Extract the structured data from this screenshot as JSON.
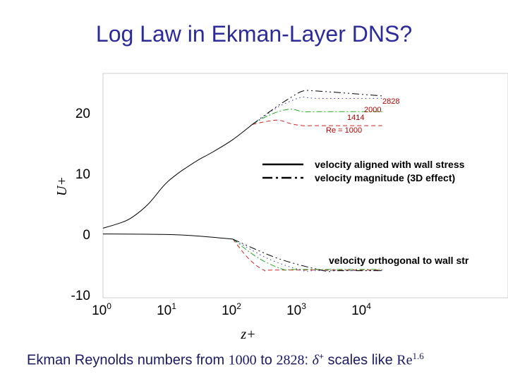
{
  "title": "Log Law in Ekman-Layer DNS?",
  "caption": {
    "text1": "Ekman Reynolds numbers from ",
    "n1": "1000",
    "text2": " to ",
    "n2": "2828",
    "text3": ": ",
    "sym": "δ",
    "sup": "+",
    "text4": " scales like ",
    "re": "Re",
    "exp": "1.6"
  },
  "chart_data": {
    "type": "line",
    "xlabel": "z+",
    "ylabel": "U+",
    "xscale": "log",
    "xlim": [
      1,
      20000
    ],
    "ylim": [
      -10,
      25
    ],
    "y_ticks": [
      "20",
      "10",
      "0",
      "-10"
    ],
    "x_ticks": [
      {
        "base": "10",
        "exp": "0"
      },
      {
        "base": "10",
        "exp": "1"
      },
      {
        "base": "10",
        "exp": "2"
      },
      {
        "base": "10",
        "exp": "3"
      },
      {
        "base": "10",
        "exp": "4"
      }
    ],
    "legend": {
      "position": "center-right",
      "entries": [
        {
          "label": "velocity aligned with wall stress",
          "style": "solid"
        },
        {
          "label": "velocity magnitude (3D effect)",
          "style": "dash-dot"
        }
      ]
    },
    "annotation": "velocity orthogonal to wall str",
    "re_labels": [
      "2828",
      "2000",
      "1414",
      "Re = 1000"
    ],
    "series": [
      {
        "re": "1000",
        "color": "#cc2222",
        "aligned": {
          "x": [
            200,
            300,
            500,
            800,
            1200,
            2000,
            20000
          ],
          "y": [
            18.1,
            18.5,
            18.8,
            18.2,
            17.9,
            17.9,
            17.9
          ]
        },
        "orthogonal": {
          "end_x": 300,
          "ortho_final": -5.9
        }
      },
      {
        "re": "1414",
        "color": "#22aa22",
        "aligned": {
          "x": [
            200,
            300,
            500,
            800,
            1200,
            2000,
            20000
          ],
          "y": [
            18.1,
            19.2,
            20.2,
            20.6,
            20.2,
            20.2,
            20.2
          ]
        },
        "orthogonal": {
          "end_x": 600,
          "ortho_final": -5.8
        }
      },
      {
        "re": "2000",
        "color": "#3333cc",
        "aligned": {
          "x": [
            200,
            300,
            500,
            800,
            1200,
            2000,
            20000
          ],
          "y": [
            18.1,
            19.4,
            21.0,
            22.0,
            22.6,
            22.4,
            22.4
          ]
        },
        "orthogonal": {
          "end_x": 1200,
          "ortho_final": -6.0
        }
      },
      {
        "re": "2828",
        "color": "#000000",
        "aligned": {
          "x": [
            200,
            300,
            500,
            800,
            1200,
            2000,
            20000
          ],
          "y": [
            18.1,
            19.5,
            21.2,
            22.6,
            23.6,
            23.6,
            22.8
          ]
        },
        "orthogonal": {
          "end_x": 2500,
          "ortho_final": -6.0
        }
      }
    ],
    "common_aligned": {
      "x": [
        1,
        2,
        3,
        5,
        8,
        10,
        15,
        20,
        30,
        50,
        100,
        200
      ],
      "y": [
        1.0,
        2.0,
        3.0,
        5.0,
        7.6,
        8.7,
        10.2,
        11.1,
        12.3,
        13.6,
        15.6,
        18.1
      ]
    },
    "common_orthogonal": {
      "x": [
        1,
        10,
        30,
        100
      ],
      "y": [
        0.05,
        -0.05,
        -0.3,
        -0.8
      ]
    }
  }
}
